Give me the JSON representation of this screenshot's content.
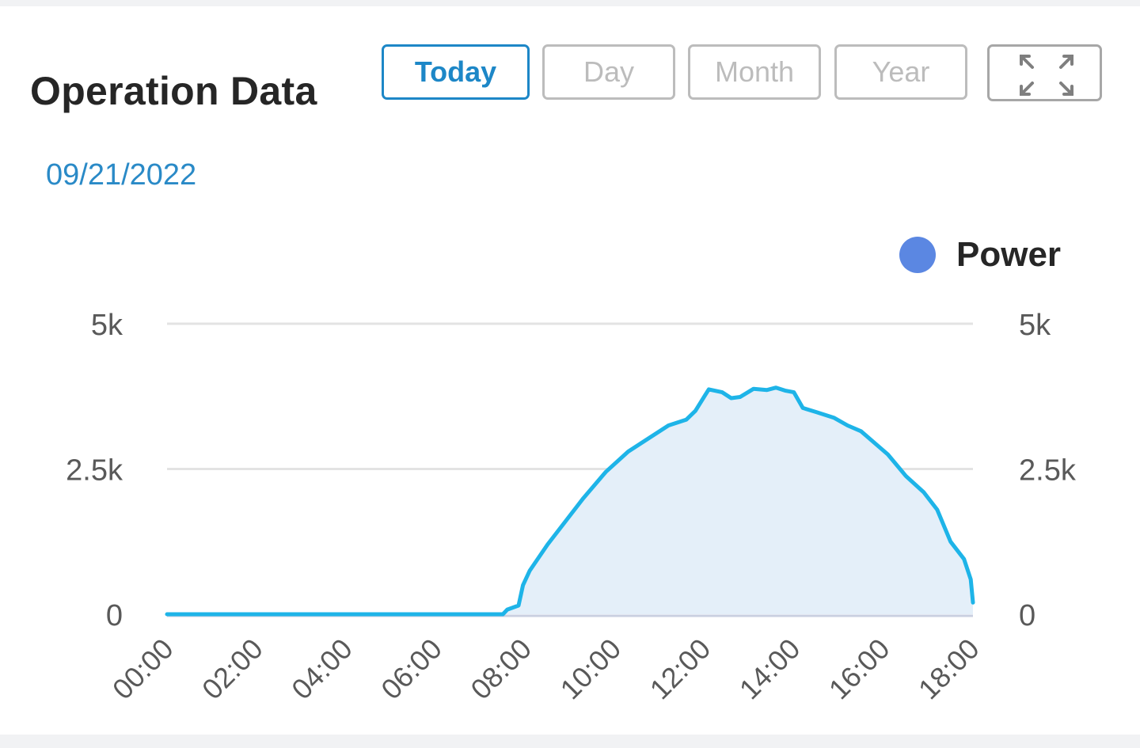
{
  "header": {
    "title": "Operation Data",
    "date": "09/21/2022"
  },
  "tabs": [
    {
      "label": "Today",
      "active": true
    },
    {
      "label": "Day",
      "active": false
    },
    {
      "label": "Month",
      "active": false
    },
    {
      "label": "Year",
      "active": false
    }
  ],
  "expand_icon": "fullscreen-expand-icon",
  "colors": {
    "accent": "#1d87c7",
    "date": "#2a8ac7",
    "line": "#1eb4e8",
    "area": "#e4eff9",
    "legend_dot": "#5b87e2",
    "grid": "#e3e3e3",
    "axis_text": "#595959"
  },
  "chart_data": {
    "type": "area",
    "title": "",
    "xlabel": "",
    "ylabel": "",
    "legend": {
      "position": "top-right"
    },
    "grid": true,
    "x_ticks": [
      "00:00",
      "02:00",
      "04:00",
      "06:00",
      "08:00",
      "10:00",
      "12:00",
      "14:00",
      "16:00",
      "18:00"
    ],
    "y_ticks_left": [
      "5k",
      "2.5k",
      "0"
    ],
    "y_ticks_right": [
      "5k",
      "2.5k",
      "0"
    ],
    "ylim": [
      0,
      5000
    ],
    "x_range_hours": [
      0,
      18
    ],
    "series": [
      {
        "name": "Power",
        "points": [
          [
            0,
            0
          ],
          [
            7.5,
            0
          ],
          [
            7.6,
            80
          ],
          [
            7.85,
            150
          ],
          [
            7.95,
            500
          ],
          [
            8.1,
            750
          ],
          [
            8.5,
            1200
          ],
          [
            8.9,
            1600
          ],
          [
            9.3,
            2000
          ],
          [
            9.8,
            2450
          ],
          [
            10.3,
            2800
          ],
          [
            10.8,
            3050
          ],
          [
            11.2,
            3250
          ],
          [
            11.6,
            3350
          ],
          [
            11.8,
            3500
          ],
          [
            12.0,
            3750
          ],
          [
            12.1,
            3870
          ],
          [
            12.4,
            3820
          ],
          [
            12.6,
            3720
          ],
          [
            12.8,
            3740
          ],
          [
            13.1,
            3880
          ],
          [
            13.4,
            3860
          ],
          [
            13.6,
            3900
          ],
          [
            13.8,
            3850
          ],
          [
            14.0,
            3820
          ],
          [
            14.2,
            3550
          ],
          [
            14.5,
            3480
          ],
          [
            14.9,
            3380
          ],
          [
            15.2,
            3250
          ],
          [
            15.5,
            3150
          ],
          [
            15.8,
            2950
          ],
          [
            16.1,
            2750
          ],
          [
            16.5,
            2380
          ],
          [
            16.9,
            2100
          ],
          [
            17.2,
            1800
          ],
          [
            17.5,
            1250
          ],
          [
            17.8,
            950
          ],
          [
            17.95,
            600
          ],
          [
            18.0,
            200
          ]
        ]
      }
    ]
  }
}
